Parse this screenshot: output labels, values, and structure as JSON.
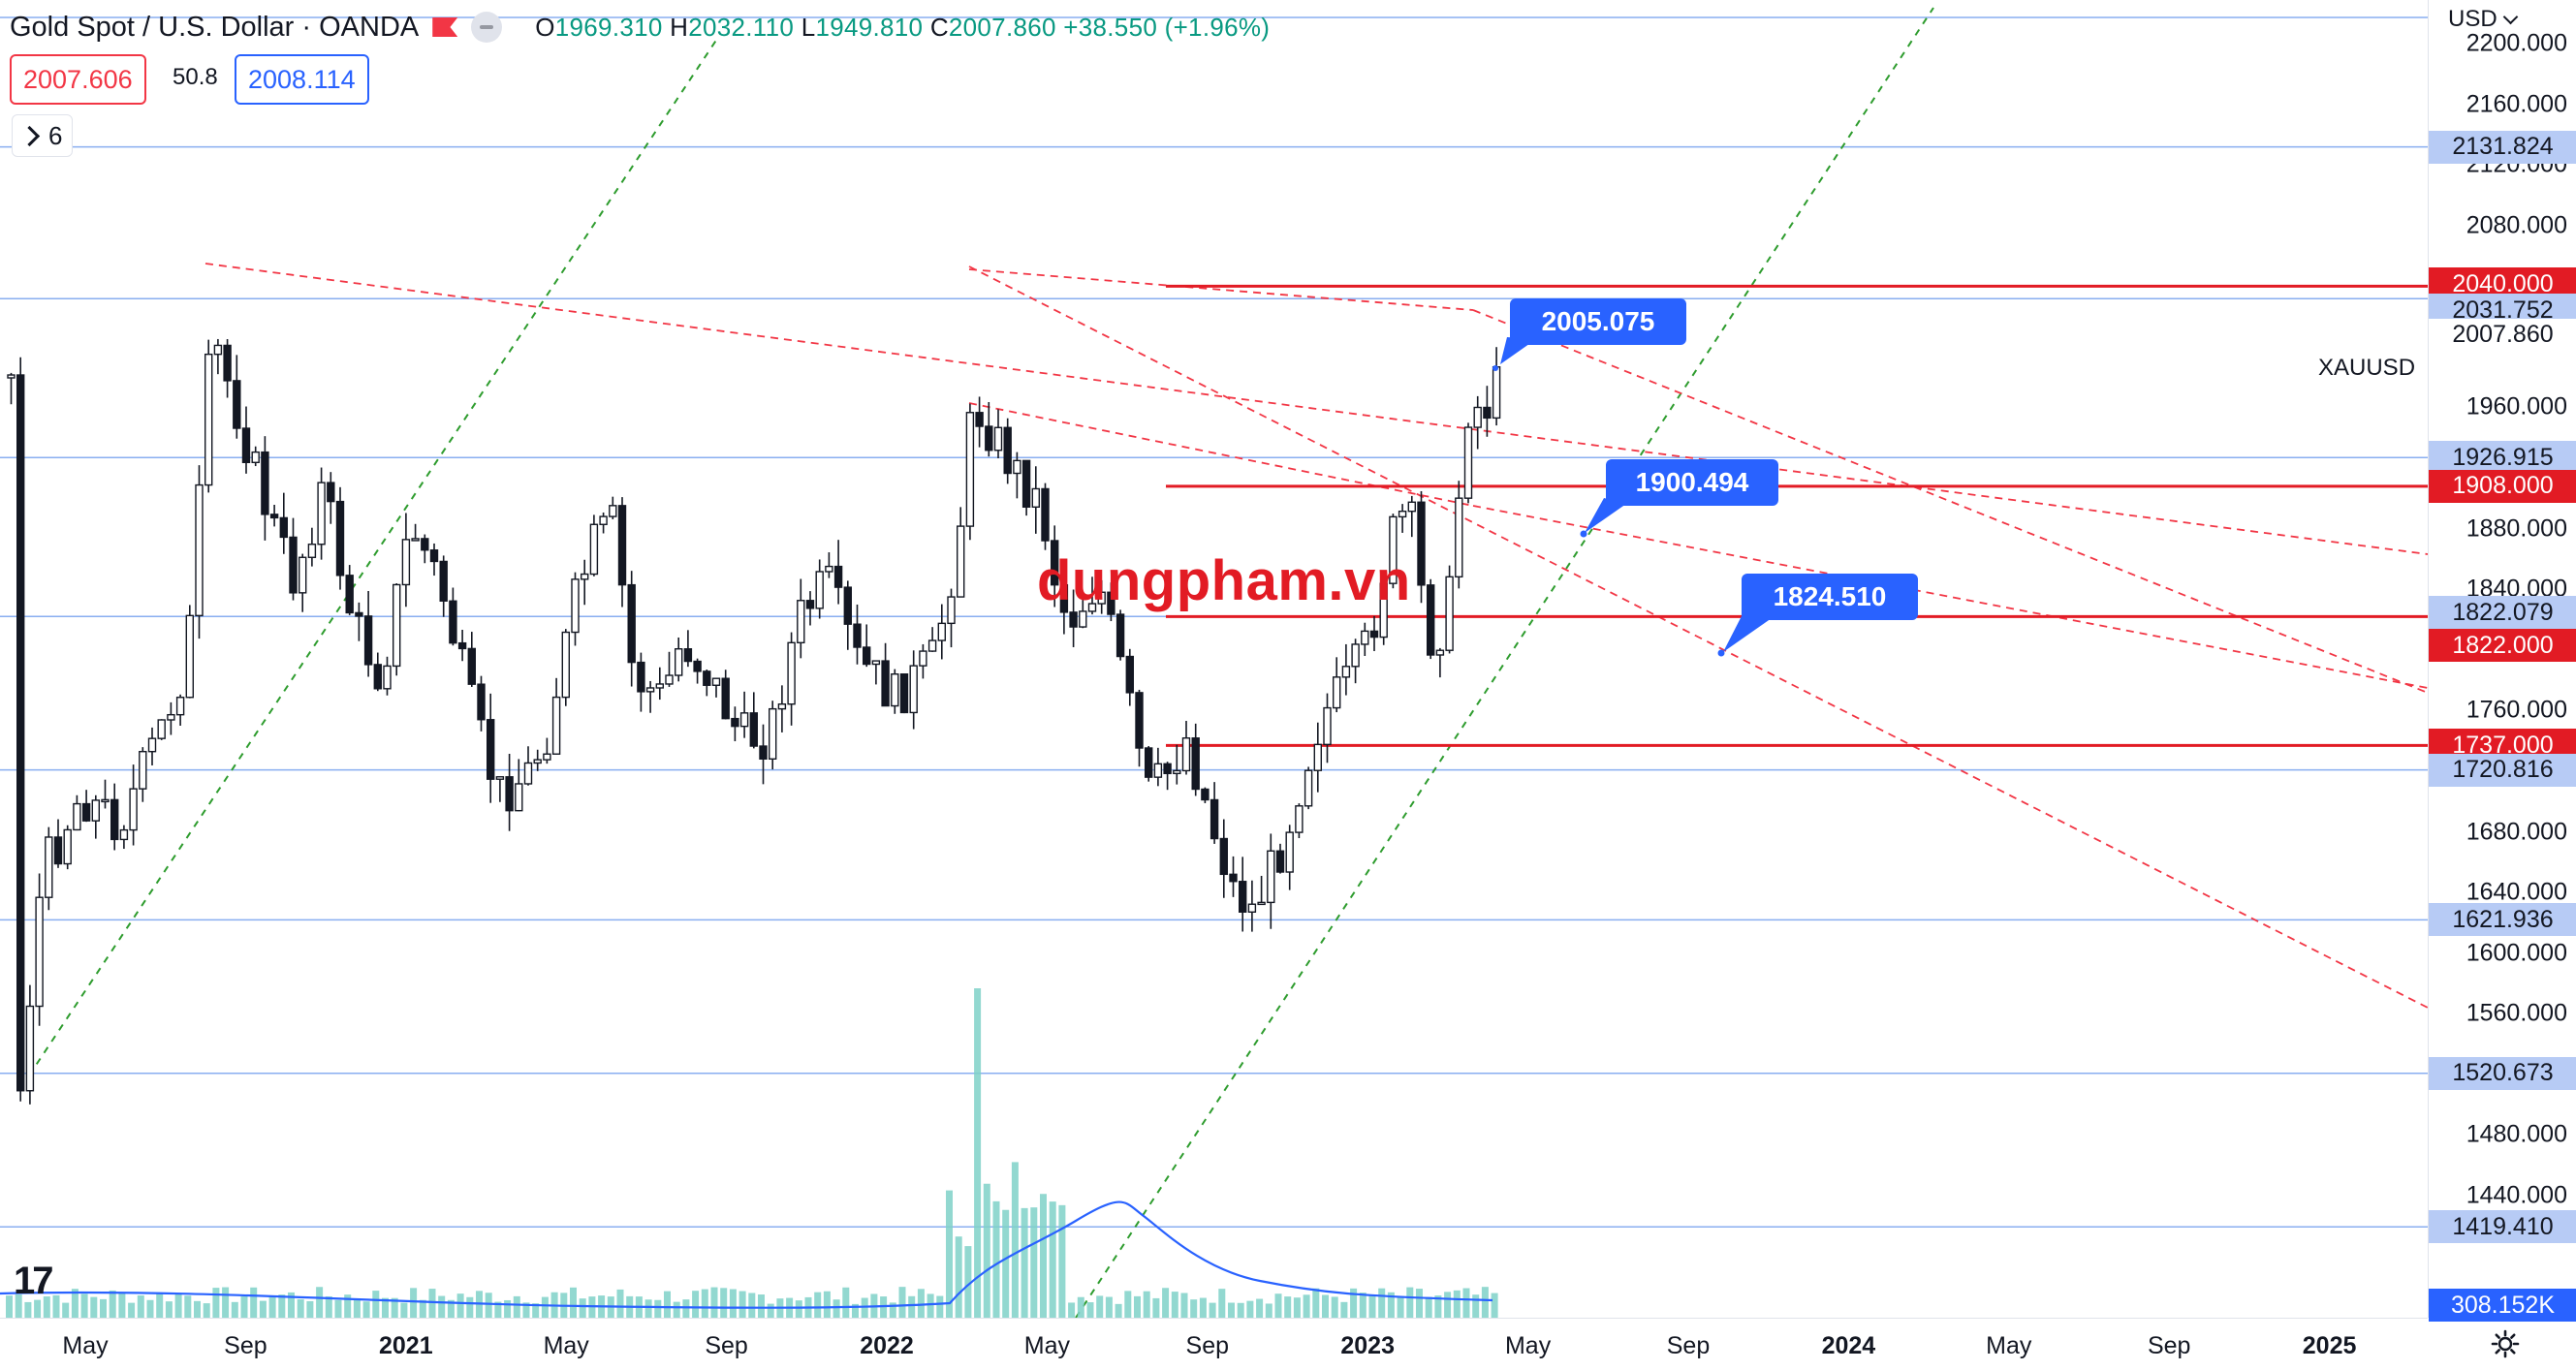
{
  "header": {
    "title": "Gold Spot / U.S. Dollar · OANDA",
    "ohlc": {
      "open_label": "O",
      "open": "1969.310",
      "high_label": "H",
      "high": "2032.110",
      "low_label": "L",
      "low": "1949.810",
      "close_label": "C",
      "close": "2007.860",
      "change": "+38.550 (+1.96%)"
    },
    "sell_price": "2007.606",
    "spread": "50.8",
    "buy_price": "2008.114",
    "indicators_count": "6",
    "flag_icon": "flag-icon"
  },
  "watermark": "dungpham.vn",
  "symbol_label": "XAUUSD",
  "price_scale": {
    "currency": "USD",
    "ticks": [
      "2200.000",
      "2160.000",
      "2120.000",
      "2080.000",
      "1960.000",
      "1880.000",
      "1840.000",
      "1760.000",
      "1680.000",
      "1640.000",
      "1600.000",
      "1560.000",
      "1480.000",
      "1440.000"
    ],
    "badges": [
      {
        "label": "2131.824",
        "kind": "blue"
      },
      {
        "label": "2040.000",
        "kind": "red"
      },
      {
        "label": "2031.752",
        "kind": "blue"
      },
      {
        "label": "2007.860",
        "kind": "plain"
      },
      {
        "label": "1926.915",
        "kind": "blue"
      },
      {
        "label": "1908.000",
        "kind": "red"
      },
      {
        "label": "1822.079",
        "kind": "blue"
      },
      {
        "label": "1822.000",
        "kind": "red"
      },
      {
        "label": "1737.000",
        "kind": "red"
      },
      {
        "label": "1720.816",
        "kind": "blue"
      },
      {
        "label": "1621.936",
        "kind": "blue"
      },
      {
        "label": "1520.673",
        "kind": "blue"
      },
      {
        "label": "1419.410",
        "kind": "blue"
      },
      {
        "label": "308.152K",
        "kind": "vol"
      }
    ]
  },
  "time_axis": [
    {
      "label": "May",
      "bold": false
    },
    {
      "label": "Sep",
      "bold": false
    },
    {
      "label": "2021",
      "bold": true
    },
    {
      "label": "May",
      "bold": false
    },
    {
      "label": "Sep",
      "bold": false
    },
    {
      "label": "2022",
      "bold": true
    },
    {
      "label": "May",
      "bold": false
    },
    {
      "label": "Sep",
      "bold": false
    },
    {
      "label": "2023",
      "bold": true
    },
    {
      "label": "May",
      "bold": false
    },
    {
      "label": "Sep",
      "bold": false
    },
    {
      "label": "2024",
      "bold": true
    },
    {
      "label": "May",
      "bold": false
    },
    {
      "label": "Sep",
      "bold": false
    },
    {
      "label": "2025",
      "bold": true
    }
  ],
  "callouts": [
    "2005.075",
    "1900.494",
    "1824.510"
  ],
  "horizontal_levels": {
    "blue": [
      2131.824,
      2031.752,
      1926.915,
      1822.079,
      1720.816,
      1621.936,
      1520.673,
      1419.41
    ],
    "red": [
      2040.0,
      1908.0,
      1822.0,
      1737.0
    ]
  },
  "colors": {
    "up": "#089981",
    "down": "#f23645",
    "candle": "#131722",
    "red_level": "#e21b24",
    "blue_level": "#89aef0",
    "accent": "#2962ff",
    "volume": "#7fd1c8",
    "volume_ma": "#2962ff",
    "green_trend": "#2e9c2e"
  }
}
